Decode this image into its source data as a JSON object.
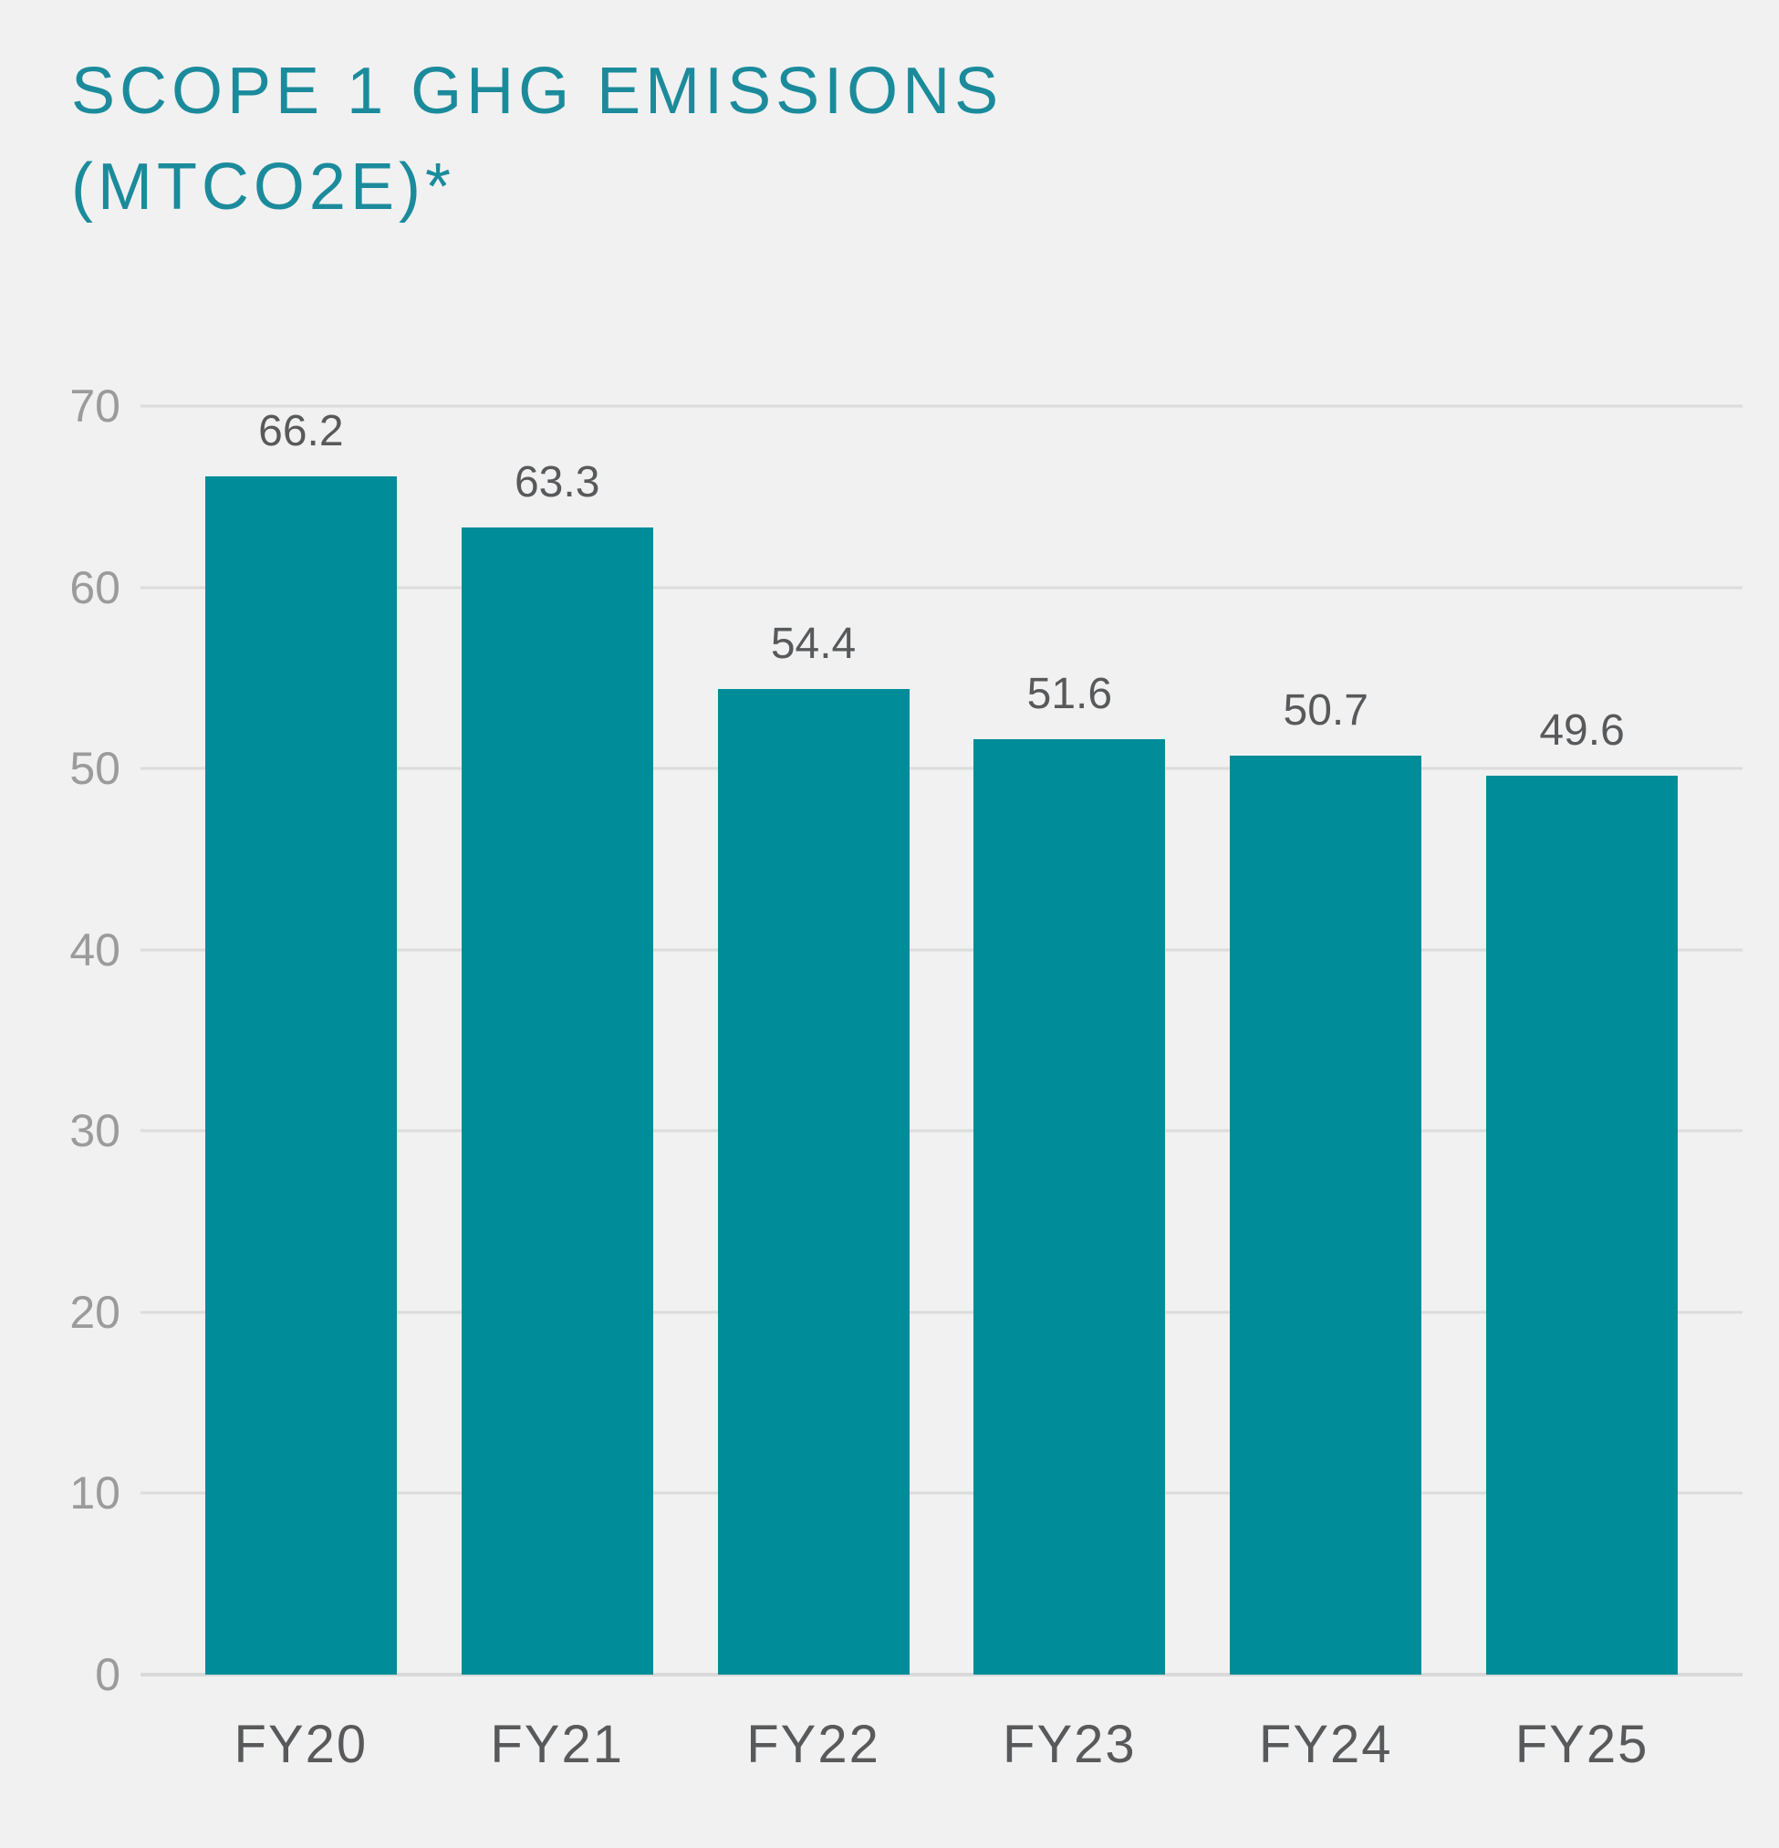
{
  "title": {
    "line1": "SCOPE 1 GHG EMISSIONS",
    "line2": "(MTCO2E)*"
  },
  "colors": {
    "background": "#F1F1F1",
    "title": "#1B8B9C",
    "bar": "#008C99",
    "gridline": "#DCDCDC",
    "ytick_label": "#9B9B9B",
    "value_label": "#58595B",
    "xtick_label": "#58595B"
  },
  "chart_data": {
    "type": "bar",
    "title": "SCOPE 1 GHG EMISSIONS (MTCO2E)*",
    "categories": [
      "FY20",
      "FY21",
      "FY22",
      "FY23",
      "FY24",
      "FY25"
    ],
    "values": [
      66.2,
      63.3,
      54.4,
      51.6,
      50.7,
      49.6
    ],
    "value_labels": [
      "66.2",
      "63.3",
      "54.4",
      "51.6",
      "50.7",
      "49.6"
    ],
    "xlabel": "",
    "ylabel": "",
    "ylim": [
      0,
      70
    ],
    "yticks": [
      0,
      10,
      20,
      30,
      40,
      50,
      60,
      70
    ],
    "grid": true,
    "legend": false,
    "bar_color": "#008C99"
  }
}
